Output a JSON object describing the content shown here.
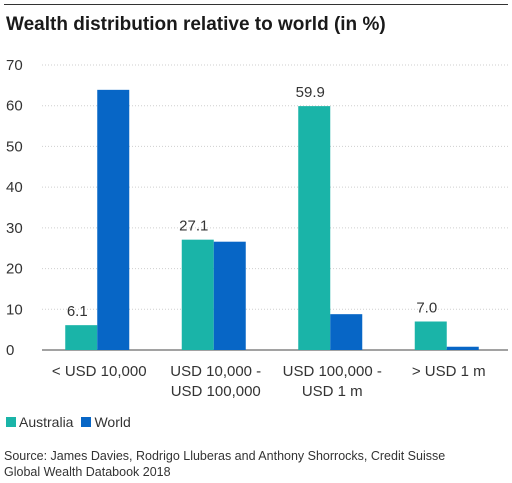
{
  "title": "Wealth distribution relative to world (in %)",
  "source_line1": "Source: James Davies, Rodrigo Lluberas and Anthony Shorrocks, Credit Suisse",
  "source_line2": "Global Wealth Databook 2018",
  "colors": {
    "australia": "#1ab4a8",
    "world": "#0766c6",
    "grid": "#cfcfcf",
    "axis": "#444444"
  },
  "chart_data": {
    "type": "bar",
    "categories": [
      [
        "< USD 10,000"
      ],
      [
        "USD 10,000 -",
        "USD 100,000"
      ],
      [
        "USD 100,000 -",
        "USD 1 m"
      ],
      [
        "> USD 1 m"
      ]
    ],
    "series": [
      {
        "name": "Australia",
        "values": [
          6.1,
          27.1,
          59.9,
          7.0
        ],
        "data_labels": [
          "6.1",
          "27.1",
          "59.9",
          "7.0"
        ]
      },
      {
        "name": "World",
        "values": [
          63.9,
          26.6,
          8.8,
          0.8
        ]
      }
    ],
    "title": "Wealth distribution relative to world (in %)",
    "ylim": [
      0,
      70
    ],
    "yticks": [
      0,
      10,
      20,
      30,
      40,
      50,
      60,
      70
    ],
    "grid": true,
    "legend": "bottom-left"
  }
}
